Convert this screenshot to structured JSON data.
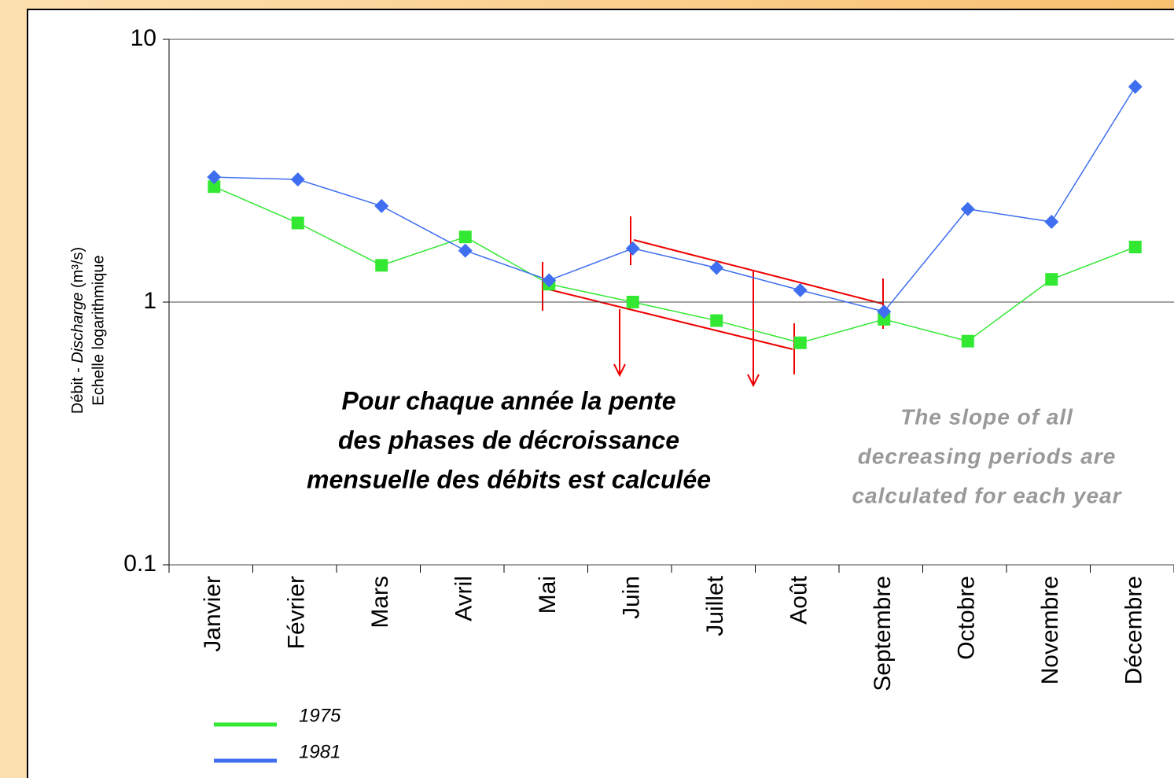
{
  "chart_data": {
    "type": "line",
    "y_label": {
      "parts": [
        "Débit - ",
        "Discharge",
        " (m³/s)"
      ],
      "line2": "Echelle logarithmique"
    },
    "categories": [
      "Janvier",
      "Février",
      "Mars",
      "Avril",
      "Mai",
      "Juin",
      "Juillet",
      "Août",
      "Septembre",
      "Octobre",
      "Novembre",
      "Décembre"
    ],
    "series": [
      {
        "name": "1975",
        "color": "#33e833",
        "marker": "square",
        "values": [
          2.75,
          2.0,
          1.38,
          1.77,
          1.17,
          1.0,
          0.85,
          0.7,
          0.86,
          0.71,
          1.22,
          1.62
        ]
      },
      {
        "name": "1981",
        "color": "#3f6ff0",
        "marker": "diamond",
        "values": [
          2.99,
          2.93,
          2.32,
          1.57,
          1.21,
          1.6,
          1.35,
          1.11,
          0.92,
          2.26,
          2.02,
          6.6
        ]
      }
    ],
    "ylim": [
      0.1,
      10
    ],
    "yticks": [
      0.1,
      1,
      10
    ],
    "log_y": true,
    "grid": true,
    "legend": "bottom-left",
    "annotations": {
      "french": [
        "Pour chaque année la pente",
        "des phases de décroissance",
        "mensuelle des débits est calculée"
      ],
      "english": [
        "The slope of all",
        "decreasing periods are",
        "calculated for each year"
      ]
    }
  }
}
